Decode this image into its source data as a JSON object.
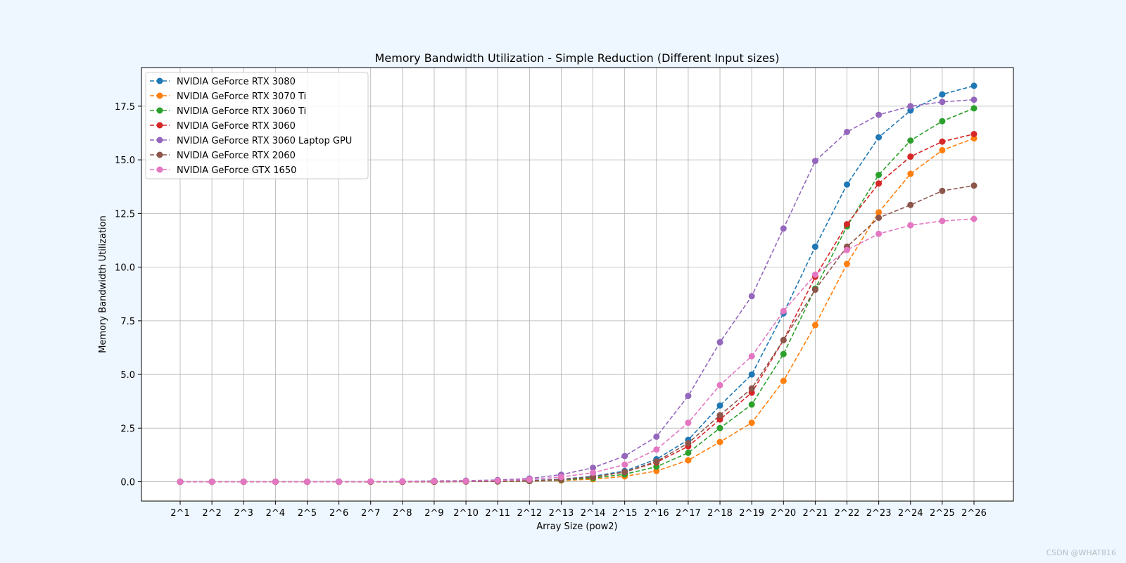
{
  "watermark": "CSDN @WHAT816",
  "chart_data": {
    "type": "line",
    "title": "Memory Bandwidth Utilization - Simple Reduction (Different Input sizes)",
    "xlabel": "Array Size (pow2)",
    "ylabel": "Memory Bandwidth Utilization",
    "categories": [
      "2^1",
      "2^2",
      "2^3",
      "2^4",
      "2^5",
      "2^6",
      "2^7",
      "2^8",
      "2^9",
      "2^10",
      "2^11",
      "2^12",
      "2^13",
      "2^14",
      "2^15",
      "2^16",
      "2^17",
      "2^18",
      "2^19",
      "2^20",
      "2^21",
      "2^22",
      "2^23",
      "2^24",
      "2^25",
      "2^26"
    ],
    "ylim": [
      -0.9,
      19.3
    ],
    "yticks": [
      0.0,
      2.5,
      5.0,
      7.5,
      10.0,
      12.5,
      15.0,
      17.5
    ],
    "ytick_labels": [
      "0.0",
      "2.5",
      "5.0",
      "7.5",
      "10.0",
      "12.5",
      "15.0",
      "17.5"
    ],
    "grid": true,
    "legend_position": "top-left",
    "line_style": "dashed",
    "marker": "circle",
    "series": [
      {
        "name": "NVIDIA GeForce RTX 3080",
        "color": "#1f77b4",
        "values": [
          0,
          0,
          0,
          0,
          0,
          0,
          0,
          0,
          0.01,
          0.01,
          0.02,
          0.05,
          0.12,
          0.25,
          0.5,
          1.05,
          1.95,
          3.55,
          5.0,
          7.85,
          10.95,
          13.85,
          16.05,
          17.3,
          18.05,
          18.45
        ]
      },
      {
        "name": "NVIDIA GeForce RTX 3070 Ti",
        "color": "#ff7f0e",
        "values": [
          0,
          0,
          0,
          0,
          0,
          0,
          0,
          0,
          0,
          0.01,
          0.01,
          0.03,
          0.06,
          0.12,
          0.25,
          0.5,
          1.0,
          1.85,
          2.75,
          4.7,
          7.3,
          10.15,
          12.55,
          14.35,
          15.45,
          16.0
        ]
      },
      {
        "name": "NVIDIA GeForce RTX 3060 Ti",
        "color": "#2ca02c",
        "values": [
          0,
          0,
          0,
          0,
          0,
          0,
          0,
          0,
          0,
          0.01,
          0.01,
          0.03,
          0.08,
          0.17,
          0.35,
          0.7,
          1.35,
          2.5,
          3.6,
          5.95,
          9.0,
          11.9,
          14.3,
          15.9,
          16.8,
          17.4
        ]
      },
      {
        "name": "NVIDIA GeForce RTX 3060",
        "color": "#d62728",
        "values": [
          0,
          0,
          0,
          0,
          0,
          0,
          0,
          0,
          0,
          0.01,
          0.02,
          0.04,
          0.1,
          0.22,
          0.45,
          0.9,
          1.65,
          2.9,
          4.15,
          6.6,
          9.55,
          12.0,
          13.9,
          15.15,
          15.85,
          16.2
        ]
      },
      {
        "name": "NVIDIA GeForce RTX 3060 Laptop GPU",
        "color": "#9467bd",
        "values": [
          0,
          0,
          0,
          0,
          0,
          0.01,
          0.01,
          0.02,
          0.04,
          0.05,
          0.08,
          0.15,
          0.33,
          0.65,
          1.2,
          2.1,
          4.0,
          6.5,
          8.65,
          11.8,
          14.95,
          16.3,
          17.1,
          17.5,
          17.7,
          17.8
        ]
      },
      {
        "name": "NVIDIA GeForce RTX 2060",
        "color": "#8c564b",
        "values": [
          0,
          0,
          0,
          0,
          0,
          0,
          0,
          0,
          0,
          0.01,
          0.02,
          0.04,
          0.1,
          0.22,
          0.45,
          0.95,
          1.8,
          3.1,
          4.35,
          6.6,
          8.95,
          10.95,
          12.3,
          12.9,
          13.55,
          13.8
        ]
      },
      {
        "name": "NVIDIA GeForce GTX 1650",
        "color": "#e377c2",
        "values": [
          0,
          0,
          0,
          0,
          0,
          0,
          0.01,
          0.01,
          0.02,
          0.03,
          0.05,
          0.1,
          0.22,
          0.42,
          0.8,
          1.5,
          2.75,
          4.5,
          5.85,
          7.95,
          9.65,
          10.8,
          11.55,
          11.95,
          12.15,
          12.25
        ]
      }
    ]
  }
}
